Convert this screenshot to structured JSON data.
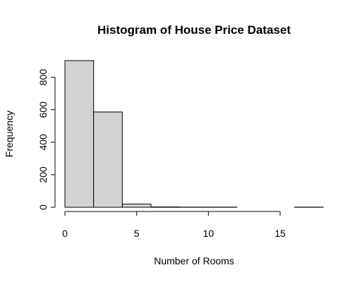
{
  "chart_data": {
    "type": "bar",
    "title": "Histogram of House Price Dataset",
    "xlabel": "Number of Rooms",
    "ylabel": "Frequency",
    "bins": [
      {
        "start": 0,
        "end": 2,
        "count": 902
      },
      {
        "start": 2,
        "end": 4,
        "count": 586
      },
      {
        "start": 4,
        "end": 6,
        "count": 20
      },
      {
        "start": 6,
        "end": 8,
        "count": 2
      },
      {
        "start": 8,
        "end": 10,
        "count": 1
      },
      {
        "start": 10,
        "end": 12,
        "count": 1
      },
      {
        "start": 12,
        "end": 14,
        "count": 0
      },
      {
        "start": 14,
        "end": 16,
        "count": 0
      },
      {
        "start": 16,
        "end": 18,
        "count": 1
      }
    ],
    "xlim": [
      0,
      18
    ],
    "ylim": [
      0,
      902
    ],
    "x_ticks": [
      0,
      5,
      10,
      15
    ],
    "y_ticks": [
      0,
      200,
      400,
      600,
      800
    ],
    "bar_fill": "#d3d3d3",
    "bar_stroke": "#000000",
    "grid": false
  }
}
